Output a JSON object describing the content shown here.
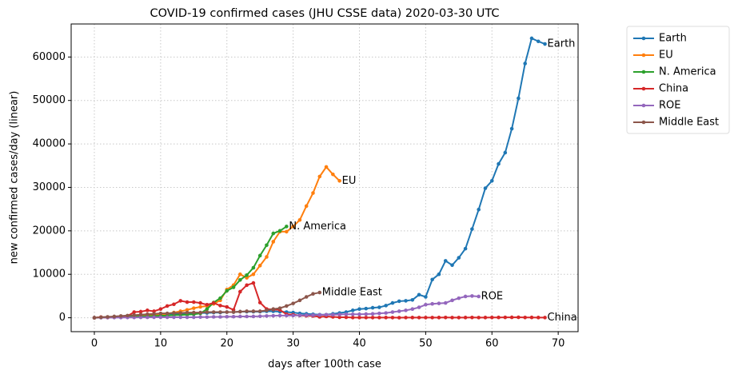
{
  "chart_data": {
    "type": "line",
    "title": "COVID-19 confirmed cases (JHU CSSE data) 2020-03-30 UTC",
    "x_label": "days after 100th case",
    "y_label": "new confirmed cases/day (linear)",
    "x": [
      0,
      1,
      2,
      3,
      4,
      5,
      6,
      7,
      8,
      9,
      10,
      11,
      12,
      13,
      14,
      15,
      16,
      17,
      18,
      19,
      20,
      21,
      22,
      23,
      24,
      25,
      26,
      27,
      28,
      29,
      30,
      31,
      32,
      33,
      34,
      35,
      36,
      37,
      38,
      39,
      40,
      41,
      42,
      43,
      44,
      45,
      46,
      47,
      48,
      49,
      50,
      51,
      52,
      53,
      54,
      55,
      56,
      57,
      58,
      59,
      60,
      61,
      62,
      63,
      64,
      65,
      66,
      67,
      68
    ],
    "series": [
      {
        "name": "Earth",
        "color": "#1f77b4",
        "values": [
          0,
          100,
          150,
          200,
          250,
          300,
          400,
          500,
          500,
          600,
          700,
          800,
          900,
          900,
          1000,
          1000,
          1100,
          1100,
          1200,
          1200,
          1300,
          1300,
          1400,
          1400,
          1400,
          1400,
          1500,
          1500,
          1400,
          1300,
          1200,
          1000,
          900,
          800,
          700,
          700,
          900,
          1100,
          1300,
          1700,
          2000,
          2100,
          2300,
          2400,
          2800,
          3400,
          3800,
          3900,
          4100,
          5300,
          4800,
          8800,
          10000,
          13100,
          12100,
          13800,
          15900,
          20400,
          24900,
          29800,
          31500,
          35400,
          38000,
          43500,
          50500,
          58500,
          64300,
          63600,
          63000
        ]
      },
      {
        "name": "EU",
        "color": "#ff7f0e",
        "values": [
          0,
          100,
          50,
          100,
          200,
          300,
          400,
          500,
          600,
          600,
          700,
          900,
          1200,
          1500,
          1800,
          2200,
          2500,
          2700,
          3200,
          4000,
          6500,
          7500,
          10000,
          9200,
          10000,
          12000,
          14000,
          17500,
          19800,
          19800,
          21000,
          22500,
          25700,
          28700,
          32500,
          34700,
          33000,
          31500,
          null,
          null,
          null,
          null,
          null,
          null,
          null,
          null,
          null,
          null,
          null,
          null,
          null,
          null,
          null,
          null,
          null,
          null,
          null,
          null,
          null,
          null,
          null,
          null,
          null,
          null,
          null,
          null,
          null,
          null,
          null
        ]
      },
      {
        "name": "N. America",
        "color": "#2ca02c",
        "values": [
          0,
          50,
          100,
          100,
          150,
          200,
          250,
          300,
          350,
          400,
          450,
          500,
          600,
          650,
          700,
          800,
          1000,
          2000,
          3500,
          4500,
          6200,
          7000,
          8700,
          9800,
          11500,
          14300,
          16700,
          19400,
          20000,
          21000,
          null,
          null,
          null,
          null,
          null,
          null,
          null,
          null,
          null,
          null,
          null,
          null,
          null,
          null,
          null,
          null,
          null,
          null,
          null,
          null,
          null,
          null,
          null,
          null,
          null,
          null,
          null,
          null,
          null,
          null,
          null,
          null,
          null,
          null,
          null,
          null,
          null,
          null,
          null
        ]
      },
      {
        "name": "China",
        "color": "#d62728",
        "values": [
          0,
          150,
          100,
          200,
          300,
          400,
          1300,
          1400,
          1700,
          1500,
          2000,
          2700,
          3100,
          3900,
          3600,
          3600,
          3400,
          3000,
          3400,
          2800,
          2500,
          1800,
          6000,
          7500,
          8000,
          3500,
          2000,
          1900,
          1800,
          800,
          700,
          500,
          450,
          400,
          200,
          300,
          200,
          100,
          100,
          50,
          50,
          40,
          30,
          40,
          50,
          30,
          20,
          40,
          50,
          40,
          30,
          40,
          50,
          60,
          40,
          30,
          50,
          60,
          40,
          50,
          60,
          70,
          80,
          90,
          100,
          60,
          70,
          50,
          40
        ]
      },
      {
        "name": "ROE",
        "color": "#9467bd",
        "values": [
          0,
          20,
          30,
          40,
          50,
          60,
          70,
          80,
          90,
          100,
          100,
          100,
          100,
          100,
          100,
          100,
          150,
          150,
          200,
          200,
          250,
          250,
          300,
          300,
          300,
          350,
          400,
          450,
          500,
          500,
          500,
          550,
          600,
          600,
          650,
          700,
          700,
          750,
          800,
          800,
          800,
          850,
          900,
          1000,
          1100,
          1300,
          1500,
          1700,
          2000,
          2400,
          3000,
          3200,
          3300,
          3400,
          4000,
          4500,
          4900,
          5000,
          4900,
          null,
          null,
          null,
          null,
          null,
          null,
          null,
          null,
          null,
          null
        ]
      },
      {
        "name": "Middle East",
        "color": "#8c564b",
        "values": [
          0,
          100,
          200,
          300,
          400,
          500,
          600,
          700,
          800,
          900,
          1000,
          1000,
          1100,
          1100,
          1200,
          1200,
          1200,
          1300,
          1300,
          1300,
          1300,
          1300,
          1400,
          1500,
          1500,
          1500,
          1700,
          2000,
          2200,
          2700,
          3300,
          4000,
          4800,
          5500,
          5800,
          null,
          null,
          null,
          null,
          null,
          null,
          null,
          null,
          null,
          null,
          null,
          null,
          null,
          null,
          null,
          null,
          null,
          null,
          null,
          null,
          null,
          null,
          null,
          null,
          null,
          null,
          null,
          null,
          null,
          null,
          null,
          null,
          null,
          null
        ]
      }
    ],
    "xlim": [
      -3.5,
      73
    ],
    "ylim": [
      -3200,
      67600
    ],
    "xticks": [
      0,
      10,
      20,
      30,
      40,
      50,
      60,
      70
    ],
    "yticks": [
      0,
      10000,
      20000,
      30000,
      40000,
      50000,
      60000
    ],
    "grid": true,
    "legend": "outside right"
  }
}
